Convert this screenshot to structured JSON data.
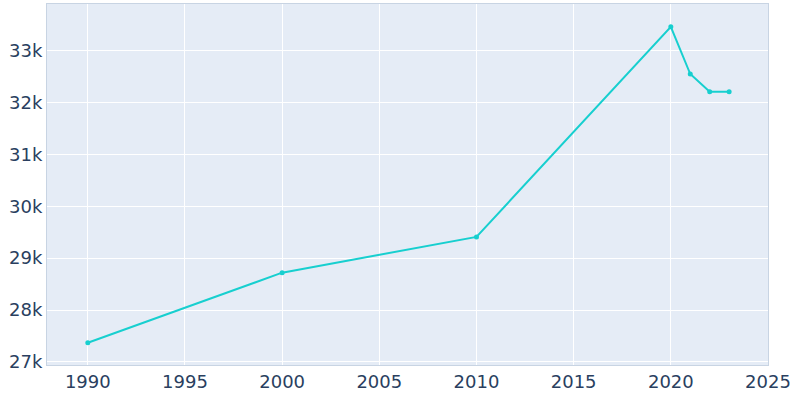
{
  "chart_data": {
    "type": "line",
    "x": [
      1990,
      2000,
      2010,
      2020,
      2021,
      2022,
      2023
    ],
    "values": [
      27370,
      28720,
      29410,
      33460,
      32550,
      32210,
      32210
    ],
    "color": "#17cfcf",
    "marker": "circle",
    "line_style": "solid",
    "xlim": [
      1987.9,
      2025
    ],
    "xticks": [
      1990,
      1995,
      2000,
      2005,
      2010,
      2015,
      2020,
      2025
    ],
    "ylim": [
      26940,
      33900
    ],
    "yticks": [
      {
        "value": 27000,
        "label": "27k"
      },
      {
        "value": 28000,
        "label": "28k"
      },
      {
        "value": 29000,
        "label": "29k"
      },
      {
        "value": 30000,
        "label": "30k"
      },
      {
        "value": 31000,
        "label": "31k"
      },
      {
        "value": 32000,
        "label": "32k"
      },
      {
        "value": 33000,
        "label": "33k"
      }
    ],
    "grid": true
  }
}
